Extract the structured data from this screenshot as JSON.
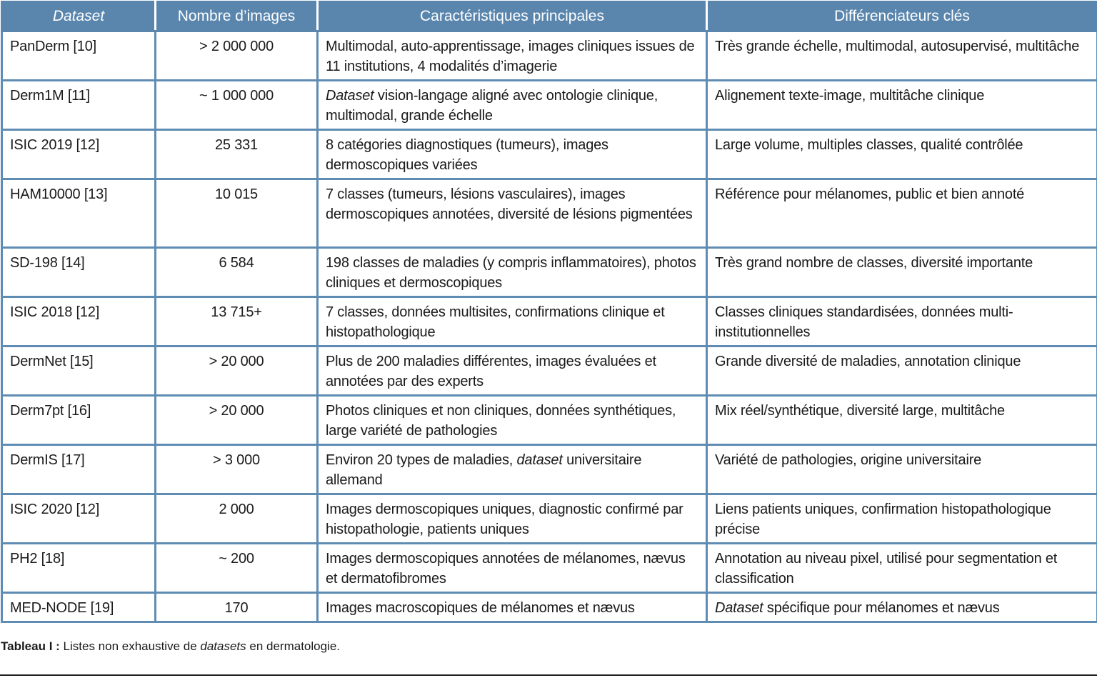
{
  "colors": {
    "header_bg": "#5a86ae",
    "border": "#5f8cb3",
    "header_text": "#ffffff"
  },
  "table": {
    "headers": [
      "Dataset",
      "Nombre d’images",
      "Caractéristiques principales",
      "Différenciateurs clés"
    ],
    "rows": [
      {
        "name": "PanDerm [10]",
        "count": "> 2 000 000",
        "features": [
          {
            "t": "Multimodal, auto-apprentissage, images cliniques issues de 11 institutions, 4 modalités d’imagerie"
          }
        ],
        "diff": [
          {
            "t": "Très grande échelle, multimodal, autosupervisé, multitâche"
          }
        ]
      },
      {
        "name": "Derm1M [11]",
        "count": "~ 1 000 000",
        "features": [
          {
            "t": "Dataset",
            "i": true
          },
          {
            "t": " vision-langage aligné avec ontologie clinique, multimodal, grande échelle"
          }
        ],
        "diff": [
          {
            "t": "Alignement texte-image, multitâche clinique"
          }
        ]
      },
      {
        "name": "ISIC 2019 [12]",
        "count": "25 331",
        "features": [
          {
            "t": "8 catégories diagnostiques (tumeurs), images dermoscopiques variées"
          }
        ],
        "diff": [
          {
            "t": "Large volume, multiples classes, qualité contrôlée"
          }
        ]
      },
      {
        "name": "HAM10000 [13]",
        "count": "10 015",
        "features": [
          {
            "t": "7 classes (tumeurs, lésions vasculaires), images dermoscopiques annotées, diversité de lésions pigmentées"
          }
        ],
        "diff": [
          {
            "t": "Référence pour mélanomes, public et bien annoté"
          }
        ]
      },
      {
        "name": "SD-198 [14]",
        "count": "6 584",
        "features": [
          {
            "t": "198 classes de maladies (y compris inflammatoires), photos cliniques et dermoscopiques"
          }
        ],
        "diff": [
          {
            "t": "Très grand nombre de classes, diversité importante"
          }
        ]
      },
      {
        "name": "ISIC 2018 [12]",
        "count": "13 715+",
        "features": [
          {
            "t": "7 classes, données multisites, confirmations clinique et histopathologique"
          }
        ],
        "diff": [
          {
            "t": "Classes cliniques standardisées, données multi-institutionnelles"
          }
        ]
      },
      {
        "name": "DermNet [15]",
        "count": "> 20 000",
        "features": [
          {
            "t": "Plus de 200 maladies différentes, images évaluées et annotées par des experts"
          }
        ],
        "diff": [
          {
            "t": "Grande diversité de maladies, annotation clinique"
          }
        ]
      },
      {
        "name": "Derm7pt [16]",
        "count": "> 20 000",
        "features": [
          {
            "t": "Photos cliniques et non cliniques, données synthétiques, large variété de pathologies"
          }
        ],
        "diff": [
          {
            "t": "Mix réel/synthétique, diversité large, multitâche"
          }
        ]
      },
      {
        "name": "DermIS [17]",
        "count": "> 3 000",
        "features": [
          {
            "t": "Environ 20 types de maladies, "
          },
          {
            "t": "dataset",
            "i": true
          },
          {
            "t": " universitaire allemand"
          }
        ],
        "diff": [
          {
            "t": "Variété de pathologies, origine universitaire"
          }
        ]
      },
      {
        "name": "ISIC 2020 [12]",
        "count": "2 000",
        "features": [
          {
            "t": "Images dermoscopiques uniques, diagnostic confirmé par histopathologie, patients uniques"
          }
        ],
        "diff": [
          {
            "t": "Liens patients uniques, confirmation histopathologique précise"
          }
        ]
      },
      {
        "name": "PH2 [18]",
        "count": "~ 200",
        "features": [
          {
            "t": "Images dermoscopiques annotées de mélanomes, nævus et dermatofibromes"
          }
        ],
        "diff": [
          {
            "t": "Annotation au niveau pixel, utilisé pour segmentation et classification"
          }
        ]
      },
      {
        "name": "MED-NODE [19]",
        "count": "170",
        "features": [
          {
            "t": "Images macroscopiques de mélanomes et nævus"
          }
        ],
        "diff": [
          {
            "t": "Dataset",
            "i": true
          },
          {
            "t": " spécifique pour mélanomes et nævus"
          }
        ]
      }
    ]
  },
  "caption": {
    "label": "Tableau I :",
    "text_before": " Listes non exhaustive de ",
    "text_italic": "datasets",
    "text_after": " en dermatologie."
  }
}
